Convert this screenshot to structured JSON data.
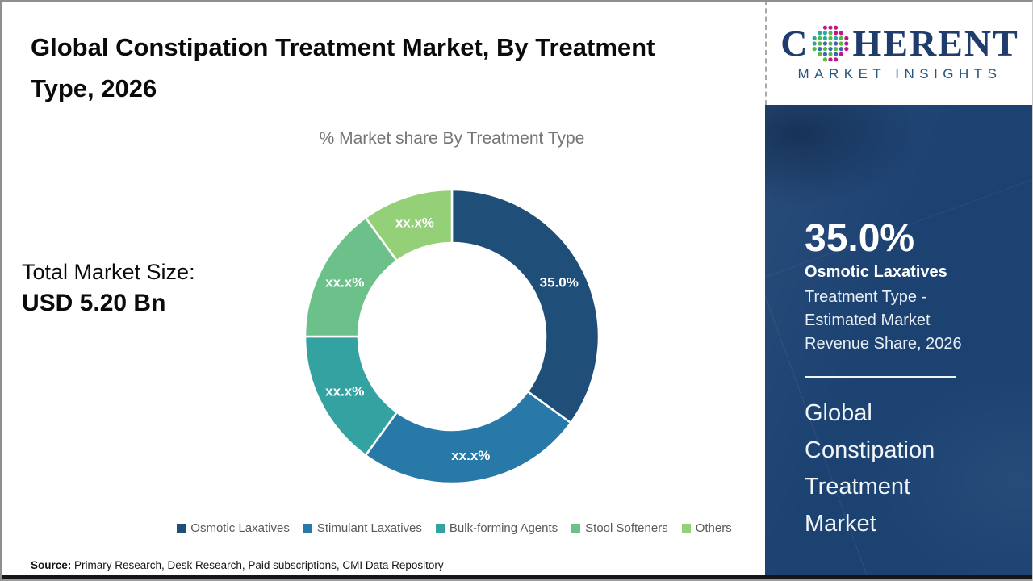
{
  "header": {
    "title": "Global Constipation Treatment Market, By Treatment Type, 2026"
  },
  "left_panel": {
    "total_label": "Total Market Size:",
    "total_value": "USD 5.20 Bn"
  },
  "chart_data": {
    "type": "pie",
    "subtype": "donut",
    "title": "% Market share By Treatment Type",
    "categories": [
      "Osmotic Laxatives",
      "Stimulant Laxatives",
      "Bulk-forming Agents",
      "Stool Softeners",
      "Others"
    ],
    "values": [
      35,
      25,
      15,
      15,
      10
    ],
    "slice_labels": [
      "35.0%",
      "xx.x%",
      "xx.x%",
      "xx.x%",
      "xx.x%"
    ],
    "colors": [
      "#1f4e79",
      "#2878a8",
      "#35a2a2",
      "#6cc08a",
      "#94d077"
    ],
    "start_angle_deg": 0,
    "direction": "clockwise",
    "donut_hole_ratio": 0.64,
    "legend_position": "bottom",
    "slice_label_color": "#ffffff"
  },
  "footer": {
    "source_label": "Source:",
    "source_text": " Primary Research, Desk Research, Paid subscriptions, CMI Data Repository"
  },
  "sidebar": {
    "logo": {
      "name": "coherent-market-insights-logo",
      "text_c": "C",
      "text_rest": "HERENT",
      "subtext": "MARKET INSIGHTS",
      "navy": "#1f3c6d",
      "globe_colors": {
        "m": "#c2178c",
        "t": "#2ba7a0",
        "g": "#58b947",
        "b": "#3a67ae"
      }
    },
    "panel_color": "#1c4272",
    "stat_value": "35.0%",
    "stat_name": "Osmotic Laxatives",
    "stat_desc_lines": [
      "Treatment Type -",
      "Estimated Market",
      "Revenue Share, 2026"
    ],
    "market_name": "Global Constipation Treatment Market"
  }
}
